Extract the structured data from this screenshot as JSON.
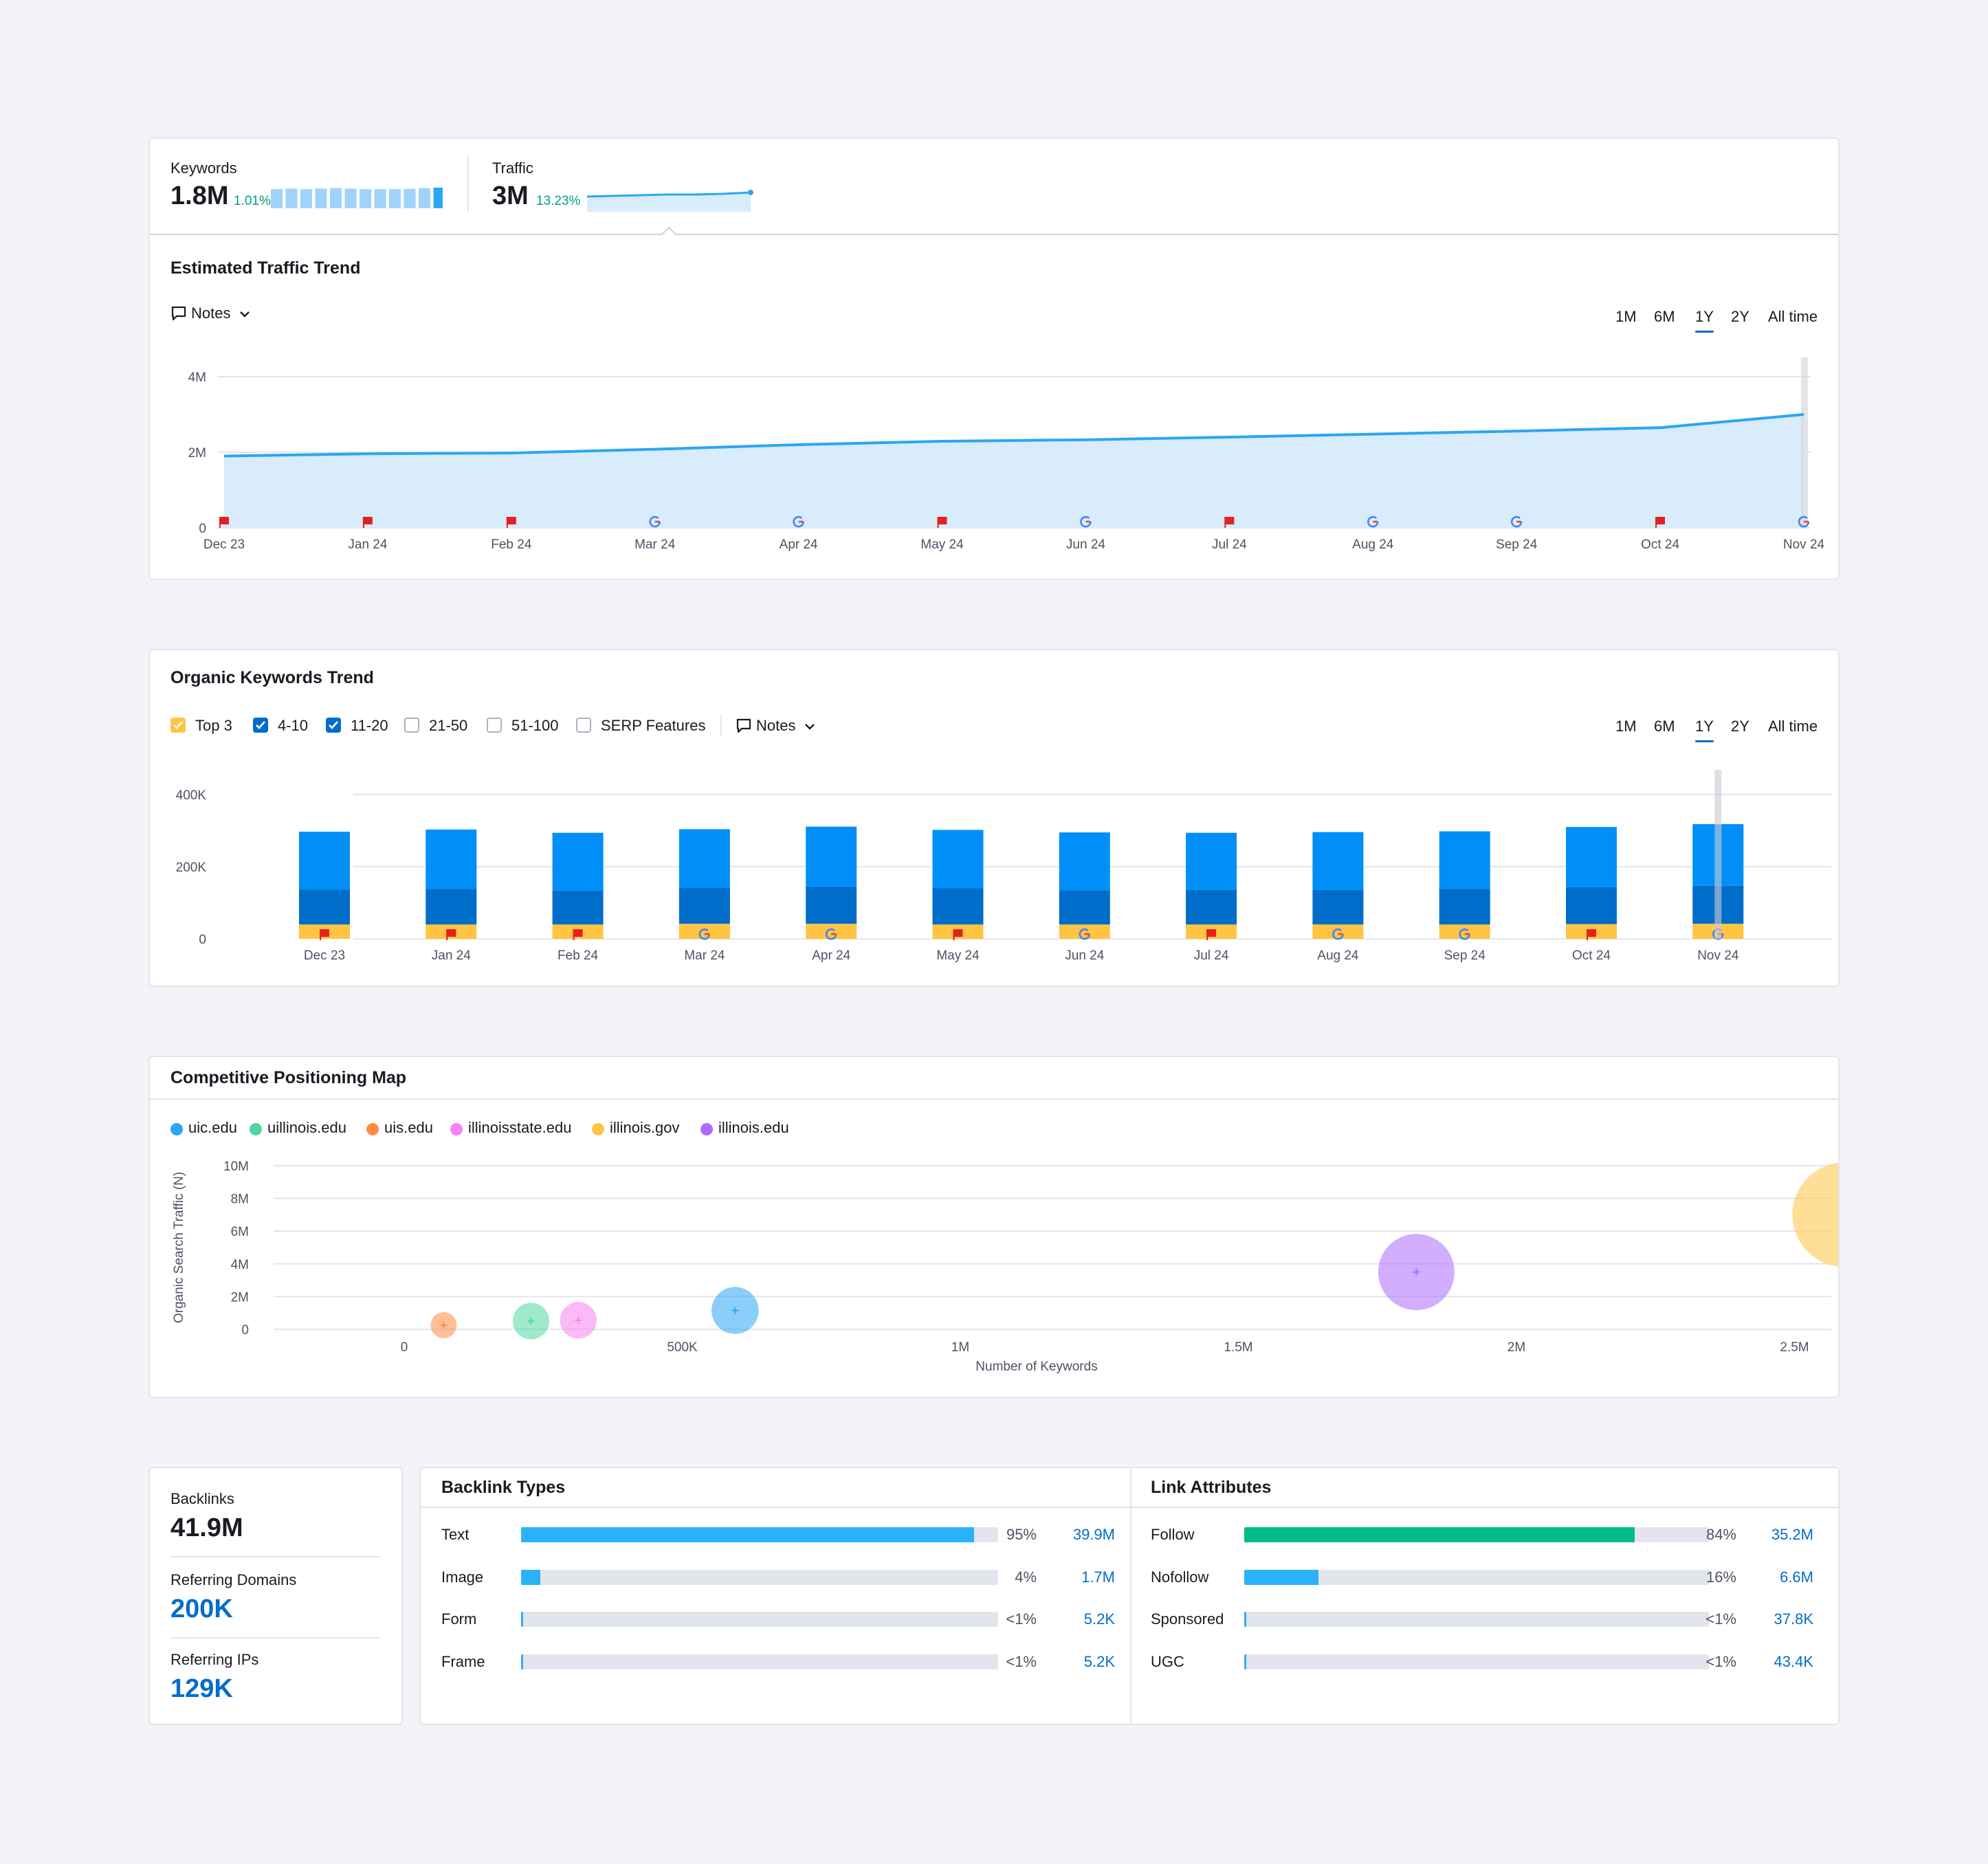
{
  "summary": {
    "keywords": {
      "label": "Keywords",
      "value": "1.8M",
      "change": "1.01%"
    },
    "traffic": {
      "label": "Traffic",
      "value": "3M",
      "change": "13.23%"
    }
  },
  "traffic_trend": {
    "title": "Estimated Traffic Trend",
    "notes_label": "Notes",
    "periods": [
      "1M",
      "6M",
      "1Y",
      "2Y",
      "All time"
    ],
    "active_period": "1Y"
  },
  "keywords_trend": {
    "title": "Organic Keywords Trend",
    "filters": [
      {
        "label": "Top 3",
        "checked": true,
        "color": "#ffc442"
      },
      {
        "label": "4-10",
        "checked": true,
        "color": "#006dca"
      },
      {
        "label": "11-20",
        "checked": true,
        "color": "#006dca"
      },
      {
        "label": "21-50",
        "checked": false
      },
      {
        "label": "51-100",
        "checked": false
      },
      {
        "label": "SERP Features",
        "checked": false
      }
    ],
    "notes_label": "Notes",
    "periods": [
      "1M",
      "6M",
      "1Y",
      "2Y",
      "All time"
    ],
    "active_period": "1Y"
  },
  "positioning": {
    "title": "Competitive Positioning Map"
  },
  "backlinks": {
    "backlinks_label": "Backlinks",
    "backlinks_value": "41.9M",
    "domains_label": "Referring Domains",
    "domains_value": "200K",
    "ips_label": "Referring IPs",
    "ips_value": "129K"
  },
  "backlink_types": {
    "title": "Backlink Types",
    "rows": [
      {
        "label": "Text",
        "pct": "95%",
        "count": "39.9M",
        "fraction": 0.95
      },
      {
        "label": "Image",
        "pct": "4%",
        "count": "1.7M",
        "fraction": 0.04
      },
      {
        "label": "Form",
        "pct": "<1%",
        "count": "5.2K",
        "fraction": 0.004
      },
      {
        "label": "Frame",
        "pct": "<1%",
        "count": "5.2K",
        "fraction": 0.004
      }
    ]
  },
  "link_attributes": {
    "title": "Link Attributes",
    "rows": [
      {
        "label": "Follow",
        "pct": "84%",
        "count": "35.2M",
        "fraction": 0.84
      },
      {
        "label": "Nofollow",
        "pct": "16%",
        "count": "6.6M",
        "fraction": 0.16
      },
      {
        "label": "Sponsored",
        "pct": "<1%",
        "count": "37.8K",
        "fraction": 0.004
      },
      {
        "label": "UGC",
        "pct": "<1%",
        "count": "43.4K",
        "fraction": 0.004
      }
    ]
  },
  "colors": {
    "accent": "#006dca",
    "traffic_line": "#2ba6f4",
    "traffic_area": "#d8ecfb",
    "bar_11_20": "#008ff8",
    "bar_4_10": "#006dca",
    "bar_top3": "#ffc442",
    "follow": "#00ba88",
    "type_fill": "#2bb1f8",
    "flag": "#e42121"
  },
  "chart_data": [
    {
      "id": "traffic",
      "type": "area",
      "title": "Estimated Traffic Trend",
      "categories": [
        "Dec 23",
        "Jan 24",
        "Feb 24",
        "Mar 24",
        "Apr 24",
        "May 24",
        "Jun 24",
        "Jul 24",
        "Aug 24",
        "Sep 24",
        "Oct 24",
        "Nov 24"
      ],
      "values": [
        1900000,
        1960000,
        1980000,
        2080000,
        2200000,
        2290000,
        2330000,
        2400000,
        2480000,
        2560000,
        2650000,
        3000000
      ],
      "yticks": [
        "0",
        "2M",
        "4M"
      ],
      "ylim": [
        0,
        4000000
      ],
      "markers": [
        "flag",
        "flag",
        "flag",
        "google",
        "google",
        "flag",
        "google",
        "flag",
        "google",
        "google",
        "flag",
        "google"
      ],
      "grid": true
    },
    {
      "id": "keywords",
      "type": "bar",
      "title": "Organic Keywords Trend",
      "categories": [
        "Dec 23",
        "Jan 24",
        "Feb 24",
        "Mar 24",
        "Apr 24",
        "May 24",
        "Jun 24",
        "Jul 24",
        "Aug 24",
        "Sep 24",
        "Oct 24",
        "Nov 24"
      ],
      "series": [
        {
          "name": "Top 3",
          "values": [
            40000,
            40000,
            40000,
            42000,
            42000,
            40000,
            40000,
            40000,
            40000,
            40000,
            41000,
            42000
          ]
        },
        {
          "name": "4-10",
          "values": [
            97000,
            98000,
            94000,
            100000,
            103000,
            100000,
            95000,
            96000,
            96000,
            98000,
            102000,
            105000
          ]
        },
        {
          "name": "11-20",
          "values": [
            160000,
            165000,
            160000,
            162000,
            166000,
            162000,
            160000,
            158000,
            160000,
            160000,
            167000,
            171000
          ]
        }
      ],
      "yticks": [
        "0",
        "200K",
        "400K"
      ],
      "ylim": [
        0,
        400000
      ],
      "markers": [
        "flag",
        "flag",
        "flag",
        "google",
        "google",
        "flag",
        "google",
        "flag",
        "google",
        "google",
        "flag",
        "google"
      ],
      "grid": true
    },
    {
      "id": "positioning",
      "type": "scatter",
      "title": "Competitive Positioning Map",
      "xlabel": "Number of Keywords",
      "ylabel": "Organic Search Traffic (N)",
      "xticks": [
        "0",
        "500K",
        "1M",
        "1.5M",
        "2M",
        "2.5M"
      ],
      "yticks": [
        "0",
        "2M",
        "4M",
        "6M",
        "8M",
        "10M"
      ],
      "xlim": [
        0,
        2800000
      ],
      "ylim": [
        0,
        10000000
      ],
      "series": [
        {
          "name": "uic.edu",
          "color": "#2ba6f4",
          "x": 595000,
          "y": 1150000,
          "size": 0.45
        },
        {
          "name": "uillinois.edu",
          "color": "#4ed89f",
          "x": 228000,
          "y": 500000,
          "size": 0.35
        },
        {
          "name": "uis.edu",
          "color": "#ff8c42",
          "x": 71000,
          "y": 250000,
          "size": 0.25
        },
        {
          "name": "illinoisstate.edu",
          "color": "#f97ff3",
          "x": 313000,
          "y": 550000,
          "size": 0.35
        },
        {
          "name": "illinois.gov",
          "color": "#ffc442",
          "x": 2590000,
          "y": 7000000,
          "size": 1.0
        },
        {
          "name": "illinois.edu",
          "color": "#ab6cfe",
          "x": 1820000,
          "y": 3500000,
          "size": 0.73
        }
      ],
      "grid": true,
      "legend": "top-left"
    }
  ]
}
